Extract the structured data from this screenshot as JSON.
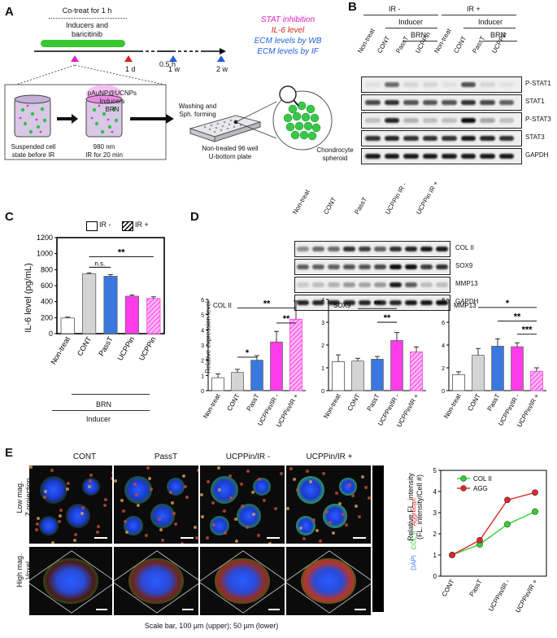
{
  "panelA": {
    "letter": "A",
    "cotreat": "Co-treat for 1 h",
    "inducers_line1": "Inducers and",
    "inducers_line2": "baricitinib",
    "timepoints": [
      "0.5 h",
      "1 d",
      "1 w",
      "2 w"
    ],
    "readouts": [
      {
        "text": "STAT inhibition",
        "color": "#e020c8"
      },
      {
        "text": "IL-6 level",
        "color": "#e02020"
      },
      {
        "text": "ECM levels by WB",
        "color": "#2060e0"
      },
      {
        "text": "ECM levels by IF",
        "color": "#2060e0"
      }
    ],
    "particles_line1": "pAuNP@UCNPs",
    "particles_line2": "Inducers",
    "particles_line3": "BRN",
    "washing_line1": "Washing and",
    "washing_line2": "Sph. forming",
    "vial1_line1": "Suspended cell",
    "vial1_line2": "state before IR",
    "vial2_line1": "980 nm",
    "vial2_line2": "IR for 20 min",
    "plate_line1": "Non-treated 96 well",
    "plate_line2": "U-bottom plate",
    "spheroid_line1": "Chondrocyte",
    "spheroid_line2": "spheroid"
  },
  "panelB": {
    "letter": "B",
    "ir_minus": "IR -",
    "ir_plus": "IR +",
    "inducer": "Inducer",
    "brn": "BRN",
    "lanes": [
      "Non-treat",
      "CONT",
      "PassT",
      "UCPPin",
      "Non-treat",
      "CONT",
      "PassT",
      "UCPPin"
    ],
    "bands": [
      "P-STAT1",
      "STAT1",
      "P-STAT3",
      "STAT3",
      "GAPDH"
    ]
  },
  "panelC": {
    "letter": "C",
    "legend_minus": "IR -",
    "legend_plus": "IR +",
    "ylabel": "IL-6 level (pg/mL)",
    "sig_main": "**",
    "sig_ns": "n.s.",
    "brn": "BRN",
    "inducer": "Inducer"
  },
  "panelD": {
    "letter": "D",
    "lanes": [
      "Non-treat",
      "CONT",
      "PassT",
      "UCPPin IR -",
      "UCPPin IR +"
    ],
    "bands": [
      "COL II",
      "SOX9",
      "MMP13",
      "GAPDH"
    ],
    "ylabel": "Relative expression level"
  },
  "panelE": {
    "letter": "E",
    "columns": [
      "CONT",
      "PassT",
      "UCPPin/IR -",
      "UCPPin/IR +"
    ],
    "row1_line1": "Low mag.",
    "row1_line2": "Z projection",
    "row2_line1": "High mag.",
    "row2_line2": "Voxel",
    "stain_dapi": "DAPI",
    "stain_col": "COL II",
    "stain_agg": "Aggrecan",
    "scalebar": "Scale bar, 100 µm (upper); 50 µm (lower)",
    "ylabel_line1": "Relative FL. intensity",
    "ylabel_line2": "(FL. intensity/Cell #)"
  },
  "chart_data": [
    {
      "type": "bar",
      "panel": "C",
      "categories": [
        "Non-treat",
        "CONT",
        "PassT",
        "UCPPin",
        "UCPPin"
      ],
      "values": [
        195,
        748,
        718,
        468,
        440
      ],
      "errors": [
        12,
        12,
        18,
        15,
        20
      ],
      "pattern": [
        "solid",
        "solid",
        "solid",
        "solid",
        "hatched"
      ],
      "colors": [
        "#ffffff",
        "#d4d4d4",
        "#3a78e0",
        "#ff3ce8",
        "#ff3ce8"
      ],
      "ylim": [
        0,
        1200
      ],
      "yticks": [
        0,
        200,
        400,
        600,
        800,
        1000,
        1200
      ],
      "annotations": [
        {
          "from": 1,
          "to": 4,
          "label": "**"
        },
        {
          "from": 1,
          "to": 2,
          "label": "n.s."
        }
      ]
    },
    {
      "type": "bar",
      "panel": "D",
      "title": "COL II",
      "categories": [
        "Non-treat",
        "CONT",
        "PassT",
        "UCPPin/IR -",
        "UCPPin/IR +"
      ],
      "values": [
        0.85,
        1.2,
        2.0,
        3.2,
        4.7
      ],
      "errors": [
        0.25,
        0.2,
        0.3,
        0.7,
        1.2
      ],
      "pattern": [
        "solid",
        "solid",
        "solid",
        "solid",
        "hatched"
      ],
      "colors": [
        "#ffffff",
        "#d4d4d4",
        "#3a78e0",
        "#ff3ce8",
        "#ff3ce8"
      ],
      "ylim": [
        0,
        6
      ],
      "yticks": [
        0,
        1,
        2,
        3,
        4,
        5,
        6
      ],
      "annotations": [
        {
          "from": 1,
          "to": 4,
          "level": 5.45,
          "label": "**"
        },
        {
          "from": 3,
          "to": 4,
          "level": 4.45,
          "label": "**"
        },
        {
          "from": 1,
          "to": 2,
          "level": 2.2,
          "label": "*"
        }
      ]
    },
    {
      "type": "bar",
      "panel": "D",
      "title": "SOX9",
      "categories": [
        "Non-treat",
        "CONT",
        "PassT",
        "UCPPin/IR -",
        "UCPPin/IR +"
      ],
      "values": [
        1.27,
        1.3,
        1.38,
        2.2,
        1.7
      ],
      "errors": [
        0.3,
        0.12,
        0.12,
        0.35,
        0.22
      ],
      "pattern": [
        "solid",
        "solid",
        "solid",
        "solid",
        "hatched"
      ],
      "colors": [
        "#ffffff",
        "#d4d4d4",
        "#3a78e0",
        "#ff3ce8",
        "#ff3ce8"
      ],
      "ylim": [
        0,
        4
      ],
      "yticks": [
        0,
        1,
        2,
        3,
        4
      ],
      "annotations": [
        {
          "from": 1,
          "to": 3,
          "level": 3.6,
          "label": "**"
        },
        {
          "from": 2,
          "to": 3,
          "level": 3.0,
          "label": "**"
        }
      ]
    },
    {
      "type": "bar",
      "panel": "D",
      "title": "MMP13",
      "categories": [
        "Non-treat",
        "CONT",
        "PassT",
        "UCPPin/IR -",
        "UCPPin/IR +"
      ],
      "values": [
        1.4,
        3.1,
        3.9,
        3.85,
        1.7
      ],
      "errors": [
        0.25,
        0.6,
        0.65,
        0.35,
        0.3
      ],
      "pattern": [
        "solid",
        "solid",
        "solid",
        "solid",
        "hatched"
      ],
      "colors": [
        "#ffffff",
        "#d4d4d4",
        "#3a78e0",
        "#ff3ce8",
        "#ff3ce8"
      ],
      "ylim": [
        0,
        8
      ],
      "yticks": [
        0,
        2,
        4,
        6,
        8
      ],
      "annotations": [
        {
          "from": 1,
          "to": 4,
          "level": 7.3,
          "label": "*"
        },
        {
          "from": 2,
          "to": 4,
          "level": 6.1,
          "label": "**"
        },
        {
          "from": 3,
          "to": 4,
          "level": 4.95,
          "label": "***"
        }
      ]
    },
    {
      "type": "line",
      "panel": "E",
      "categories": [
        "CONT",
        "PassT",
        "UCPPin/IR -",
        "UCPPin/IR +"
      ],
      "series": [
        {
          "name": "COL II",
          "values": [
            1.0,
            1.5,
            2.45,
            3.05
          ],
          "color": "#2fd22f"
        },
        {
          "name": "AGG",
          "values": [
            1.0,
            1.7,
            3.6,
            3.95
          ],
          "color": "#e02828"
        }
      ],
      "ylim": [
        0,
        5
      ],
      "yticks": [
        0,
        1,
        2,
        3,
        4,
        5
      ]
    }
  ]
}
